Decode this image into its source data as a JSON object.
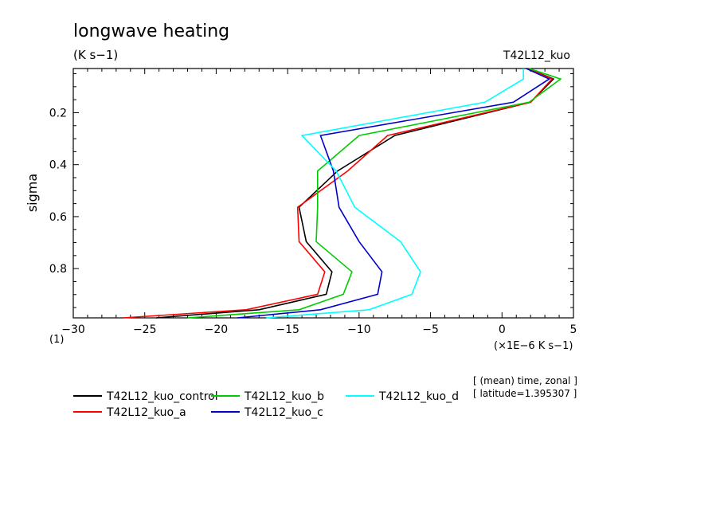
{
  "chart_data": {
    "type": "line",
    "title": "longwave heating",
    "subtitle": "(K s−1)",
    "run_label": "T42L12_kuo",
    "xlabel": "(×1E−6 K s−1)",
    "ylabel": "sigma",
    "corner_label": "(1)",
    "xlim": [
      -30,
      5
    ],
    "ylim": [
      0.03,
      0.9896
    ],
    "y_inverted": true,
    "x_ticks": [
      -30,
      -25,
      -20,
      -15,
      -10,
      -5,
      0,
      5
    ],
    "x_tick_labels": [
      "−30",
      "−25",
      "−20",
      "−15",
      "−10",
      "−5",
      "0",
      "5"
    ],
    "y_ticks": [
      0.2,
      0.4,
      0.6,
      0.8
    ],
    "y_tick_labels": [
      "0.2",
      "0.4",
      "0.6",
      "0.8"
    ],
    "y_levels": [
      0.03,
      0.0705,
      0.1597,
      0.2878,
      0.4244,
      0.5642,
      0.6962,
      0.8123,
      0.899,
      0.9583,
      0.9896
    ],
    "series": [
      {
        "name": "T42L12_kuo_control",
        "color": "#000000",
        "x": [
          1.8,
          3.6,
          2.0,
          -7.5,
          -11.5,
          -14.2,
          -13.7,
          -11.9,
          -12.3,
          -17.0,
          -24.2
        ]
      },
      {
        "name": "T42L12_kuo_a",
        "color": "#ff0000",
        "x": [
          1.8,
          3.5,
          2.0,
          -8.0,
          -10.8,
          -14.3,
          -14.2,
          -12.4,
          -12.9,
          -17.9,
          -26.5
        ]
      },
      {
        "name": "T42L12_kuo_b",
        "color": "#00cc00",
        "x": [
          1.9,
          4.1,
          1.9,
          -10.0,
          -12.9,
          -12.9,
          -13.0,
          -10.5,
          -11.1,
          -14.2,
          -22.0
        ]
      },
      {
        "name": "T42L12_kuo_c",
        "color": "#0000cc",
        "x": [
          1.7,
          3.3,
          0.8,
          -12.7,
          -11.8,
          -11.4,
          -10.0,
          -8.4,
          -8.7,
          -12.7,
          -18.5
        ]
      },
      {
        "name": "T42L12_kuo_d",
        "color": "#00ffff",
        "x": [
          1.5,
          1.5,
          -1.2,
          -14.0,
          -11.6,
          -10.3,
          -7.1,
          -5.7,
          -6.3,
          -9.3,
          -16.5
        ]
      }
    ],
    "legend_position": "bottom-left",
    "notes": [
      "[ (mean) time, zonal ]",
      "[ latitude=1.395307 ]"
    ],
    "grid": false
  }
}
